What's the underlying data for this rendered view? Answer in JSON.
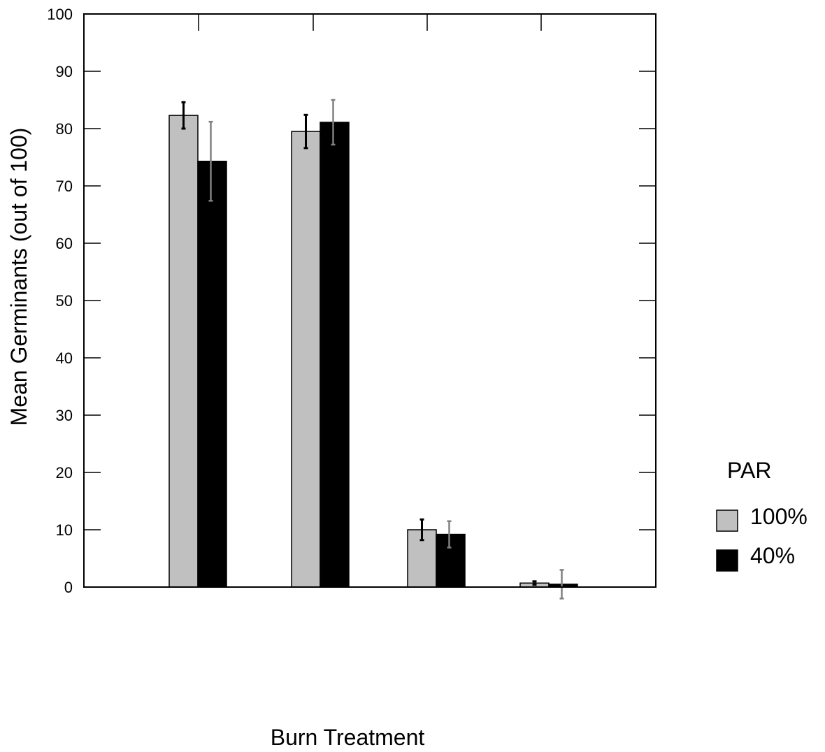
{
  "chart_data": {
    "type": "bar",
    "title": "",
    "xlabel": "Burn Treatment",
    "ylabel": "Mean Germinants (out of 100)",
    "ylim": [
      0,
      100
    ],
    "yticks": [
      0,
      10,
      20,
      30,
      40,
      50,
      60,
      70,
      80,
      90,
      100
    ],
    "categories": [
      "",
      "",
      "",
      ""
    ],
    "grid": false,
    "legend": {
      "title": "PAR",
      "position": "right"
    },
    "series": [
      {
        "name": "100%",
        "color": "#c0c0c0",
        "values": [
          82.3,
          79.5,
          10.0,
          0.7
        ],
        "errors": [
          2.3,
          2.9,
          1.8,
          0.3
        ],
        "error_color": "#000000"
      },
      {
        "name": "40%",
        "color": "#000000",
        "values": [
          74.3,
          81.1,
          9.2,
          0.5
        ],
        "errors": [
          6.9,
          3.9,
          2.3,
          2.5
        ],
        "error_color": "#808080"
      }
    ]
  }
}
